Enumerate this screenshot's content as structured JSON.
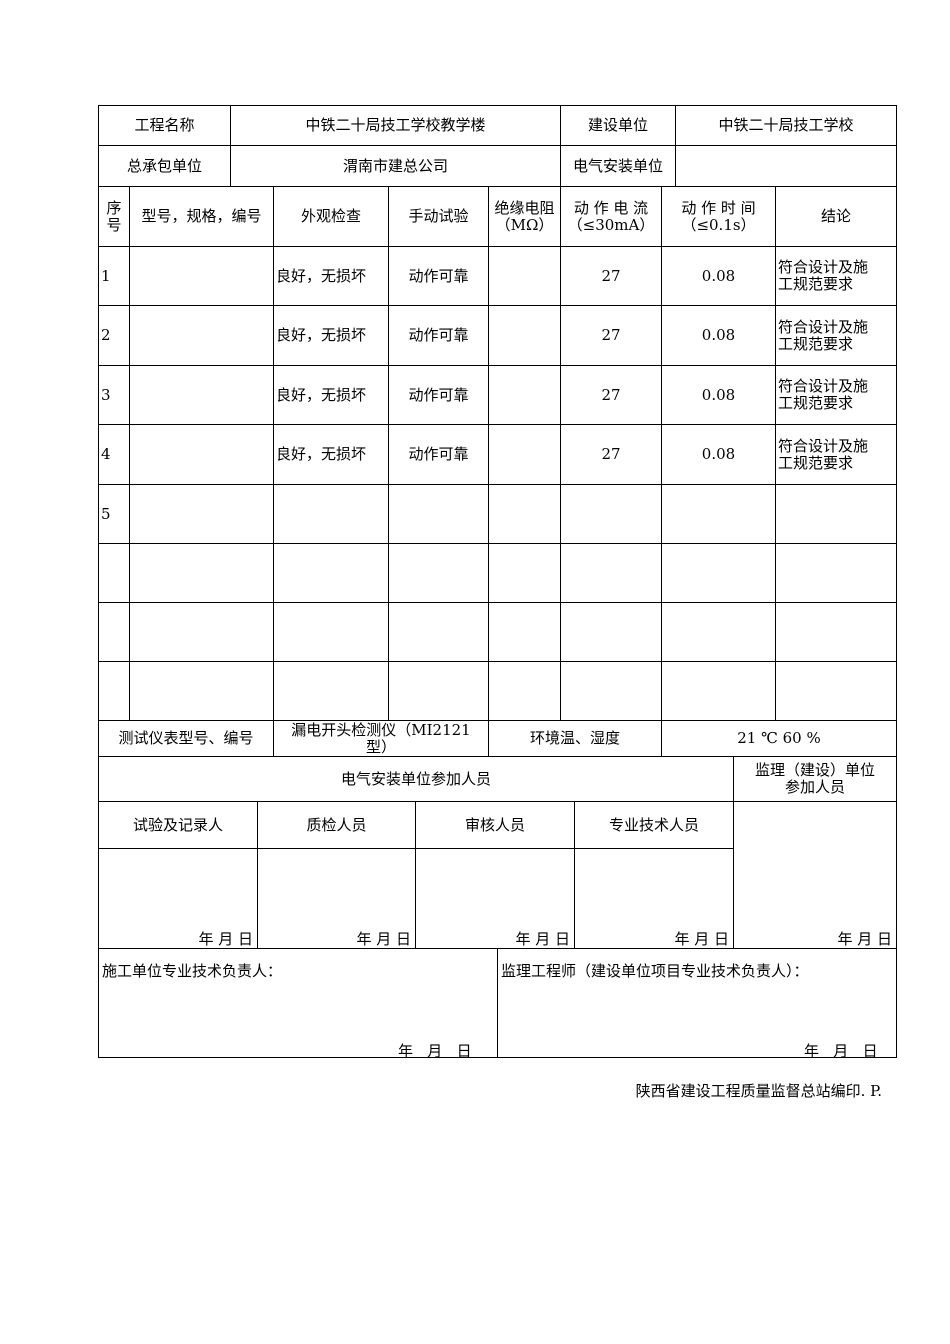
{
  "header": {
    "project_name_label": "工程名称",
    "project_name": "中铁二十局技工学校教学楼",
    "owner_label": "建设单位",
    "owner": "中铁二十局技工学校",
    "contractor_label": "总承包单位",
    "contractor": "渭南市建总公司",
    "electrical_unit_label": "电气安装单位",
    "electrical_unit": ""
  },
  "table": {
    "columns": [
      "序\n号",
      "型号，规格，编号",
      "外观检查",
      "手动试验",
      "绝缘电阻\n（MΩ）",
      "动 作 电 流\n（≤30mA）",
      "动 作 时 间\n（≤0.1s）",
      "结论"
    ],
    "rows": [
      [
        "1",
        "",
        "良好，无损坏",
        "动作可靠",
        "",
        "27",
        "0.08",
        "符合设计及施\n工规范要求"
      ],
      [
        "2",
        "",
        "良好，无损坏",
        "动作可靠",
        "",
        "27",
        "0.08",
        "符合设计及施\n工规范要求"
      ],
      [
        "3",
        "",
        "良好，无损坏",
        "动作可靠",
        "",
        "27",
        "0.08",
        "符合设计及施\n工规范要求"
      ],
      [
        "4",
        "",
        "良好，无损坏",
        "动作可靠",
        "",
        "27",
        "0.08",
        "符合设计及施\n工规范要求"
      ],
      [
        "5",
        "",
        "",
        "",
        "",
        "",
        "",
        ""
      ],
      [
        "",
        "",
        "",
        "",
        "",
        "",
        "",
        ""
      ],
      [
        "",
        "",
        "",
        "",
        "",
        "",
        "",
        ""
      ],
      [
        "",
        "",
        "",
        "",
        "",
        "",
        "",
        ""
      ]
    ]
  },
  "instrument": {
    "label": "测试仪表型号、编号",
    "value": "漏电开头检测仪（MI2121\n型）",
    "env_label": "环境温、湿度",
    "env_value": "21 ℃  60 %"
  },
  "personnel": {
    "electrical_label": "电气安装单位参加人员",
    "supervision_label": "监理（建设）单位\n参加人员",
    "roles": [
      "试验及记录人",
      "质检人员",
      "审核人员",
      "专业技术人员"
    ],
    "date_text": "年   月   日"
  },
  "signoff": {
    "construction_label": "施工单位专业技术负责人：",
    "supervisor_label": "监理工程师（建设单位项目专业技术负责人）：",
    "date_text": "年   月   日"
  },
  "footer": "陕西省建设工程质量监督总站编印. P."
}
